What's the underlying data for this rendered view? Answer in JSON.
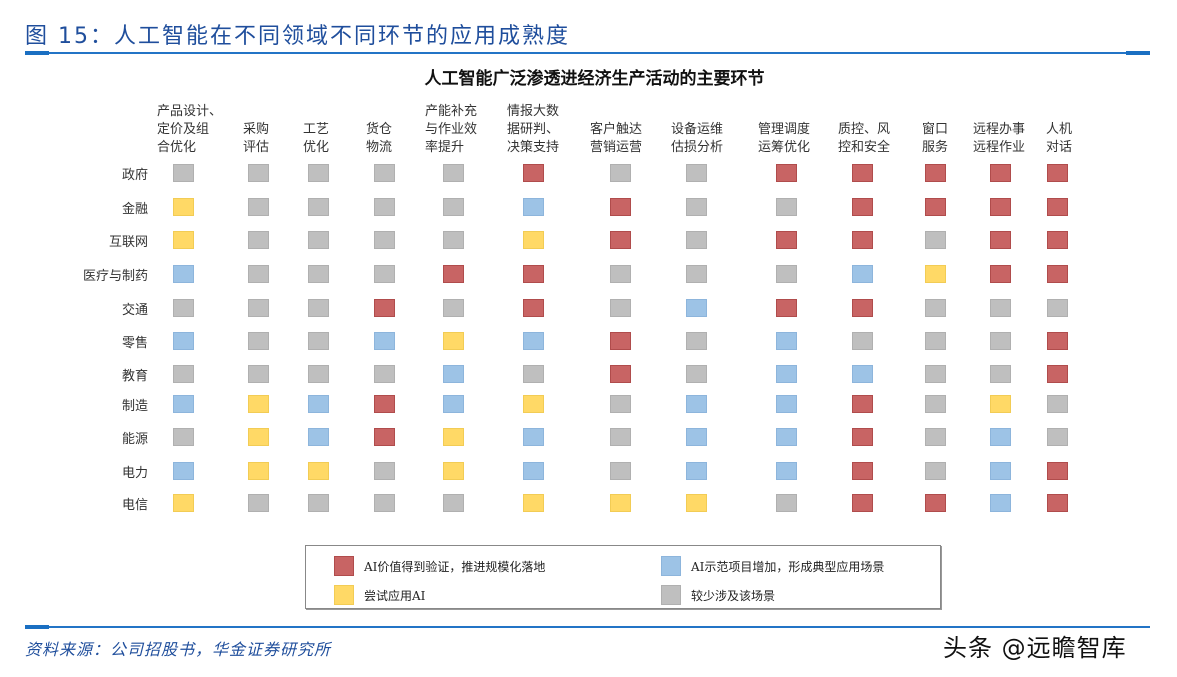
{
  "figure": {
    "title": "图 15：人工智能在不同领域不同环节的应用成熟度",
    "source": "资料来源：公司招股书，华金证券研究所",
    "watermark": "头条 @远瞻智库"
  },
  "colors": {
    "R": "#c86464",
    "B": "#9dc3e6",
    "Y": "#ffd966",
    "G": "#bfbfbf",
    "title_blue": "#1f4e9c",
    "rule_blue": "#2374c6"
  },
  "legend": [
    {
      "key": "R",
      "label": "AI价值得到验证，推进规模化落地"
    },
    {
      "key": "B",
      "label": "AI示范项目增加，形成典型应用场景"
    },
    {
      "key": "Y",
      "label": "尝试应用AI"
    },
    {
      "key": "G",
      "label": "较少涉及该场景"
    }
  ],
  "chart_data": {
    "type": "heatmap",
    "title": "人工智能广泛渗透进经济生产活动的主要环节",
    "xlabel": "",
    "ylabel": "",
    "legend_position": "bottom",
    "grid": false,
    "x": [
      "产品设计、定价及组合优化",
      "采购评估",
      "工艺优化",
      "货仓物流",
      "产能补充与作业效率提升",
      "情报大数据研判、决策支持",
      "客户触达营销运营",
      "设备运维估损分析",
      "管理调度运筹优化",
      "质控、风控和安全",
      "窗口服务",
      "远程办事远程作业",
      "人机对话"
    ],
    "x_display": [
      "产品设计、\n定价及组\n合优化",
      "采购\n评估",
      "工艺\n优化",
      "货仓\n物流",
      "产能补充\n与作业效\n率提升",
      "情报大数\n据研判、\n决策支持",
      "客户触达\n营销运营",
      "设备运维\n估损分析",
      "管理调度\n运筹优化",
      "质控、风\n控和安全",
      "窗口\n服务",
      "远程办事\n远程作业",
      "人机\n对话"
    ],
    "y": [
      "政府",
      "金融",
      "互联网",
      "医疗与制药",
      "交通",
      "零售",
      "教育",
      "制造",
      "能源",
      "电力",
      "电信"
    ],
    "value_legend": {
      "R": "AI价值得到验证，推进规模化落地",
      "B": "AI示范项目增加，形成典型应用场景",
      "Y": "尝试应用AI",
      "G": "较少涉及该场景"
    },
    "values": [
      [
        "G",
        "G",
        "G",
        "G",
        "G",
        "R",
        "G",
        "G",
        "R",
        "R",
        "R",
        "R",
        "R"
      ],
      [
        "Y",
        "G",
        "G",
        "G",
        "G",
        "B",
        "R",
        "G",
        "G",
        "R",
        "R",
        "R",
        "R"
      ],
      [
        "Y",
        "G",
        "G",
        "G",
        "G",
        "Y",
        "R",
        "G",
        "R",
        "R",
        "G",
        "R",
        "R"
      ],
      [
        "B",
        "G",
        "G",
        "G",
        "R",
        "R",
        "G",
        "G",
        "G",
        "B",
        "Y",
        "R",
        "R"
      ],
      [
        "G",
        "G",
        "G",
        "R",
        "G",
        "R",
        "G",
        "B",
        "R",
        "R",
        "G",
        "G",
        "G"
      ],
      [
        "B",
        "G",
        "G",
        "B",
        "Y",
        "B",
        "R",
        "G",
        "B",
        "G",
        "G",
        "G",
        "R"
      ],
      [
        "G",
        "G",
        "G",
        "G",
        "B",
        "G",
        "R",
        "G",
        "B",
        "B",
        "G",
        "G",
        "R"
      ],
      [
        "B",
        "Y",
        "B",
        "R",
        "B",
        "Y",
        "G",
        "B",
        "B",
        "R",
        "G",
        "Y",
        "G"
      ],
      [
        "G",
        "Y",
        "B",
        "R",
        "Y",
        "B",
        "G",
        "B",
        "B",
        "R",
        "G",
        "B",
        "G"
      ],
      [
        "B",
        "Y",
        "Y",
        "G",
        "Y",
        "B",
        "G",
        "B",
        "B",
        "R",
        "G",
        "B",
        "R"
      ],
      [
        "Y",
        "G",
        "G",
        "G",
        "G",
        "Y",
        "Y",
        "Y",
        "G",
        "R",
        "R",
        "B",
        "R"
      ]
    ]
  }
}
